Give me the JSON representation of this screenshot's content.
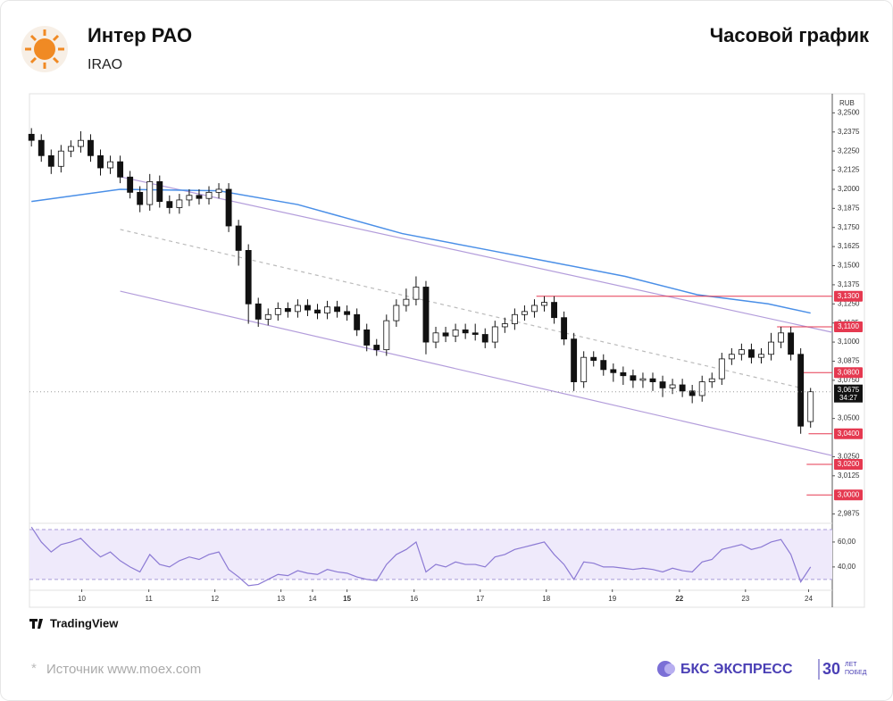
{
  "header": {
    "title": "Интер РАО",
    "ticker": "IRAO",
    "chart_kind": "Часовой график"
  },
  "chart_data": {
    "type": "candlestick",
    "currency": "RUB",
    "xlim": [
      -0.2,
      81.2
    ],
    "ylim": [
      2.982,
      3.2625
    ],
    "xticks": [
      {
        "value": 5.1,
        "label": "10"
      },
      {
        "value": 11.9,
        "label": "11"
      },
      {
        "value": 18.6,
        "label": "12"
      },
      {
        "value": 25.3,
        "label": "13"
      },
      {
        "value": 28.5,
        "label": "14"
      },
      {
        "value": 32,
        "label": "15"
      },
      {
        "value": 38.8,
        "label": "16"
      },
      {
        "value": 45.5,
        "label": "17"
      },
      {
        "value": 52.2,
        "label": "18"
      },
      {
        "value": 58.9,
        "label": "19"
      },
      {
        "value": 65.7,
        "label": "22"
      },
      {
        "value": 72.4,
        "label": "23"
      },
      {
        "value": 78.8,
        "label": "24"
      }
    ],
    "bold_xticks": [
      "15",
      "22"
    ],
    "yticks": [
      {
        "value": 2.9875,
        "label": "2,9875"
      },
      {
        "value": 3.0125,
        "label": "3,0125"
      },
      {
        "value": 3.025,
        "label": "3,0250"
      },
      {
        "value": 3.05,
        "label": "3,0500"
      },
      {
        "value": 3.075,
        "label": "3,0750"
      },
      {
        "value": 3.0875,
        "label": "3,0875"
      },
      {
        "value": 3.1,
        "label": "3,1000"
      },
      {
        "value": 3.1125,
        "label": "3,1125"
      },
      {
        "value": 3.125,
        "label": "3,1250"
      },
      {
        "value": 3.1375,
        "label": "3,1375"
      },
      {
        "value": 3.15,
        "label": "3,1500"
      },
      {
        "value": 3.1625,
        "label": "3,1625"
      },
      {
        "value": 3.175,
        "label": "3,1750"
      },
      {
        "value": 3.1875,
        "label": "3,1875"
      },
      {
        "value": 3.2,
        "label": "3,2000"
      },
      {
        "value": 3.2125,
        "label": "3,2125"
      },
      {
        "value": 3.225,
        "label": "3,2250"
      },
      {
        "value": 3.2375,
        "label": "3,2375"
      },
      {
        "value": 3.25,
        "label": "3,2500"
      }
    ],
    "open": [
      3.236,
      3.232,
      3.222,
      3.215,
      3.225,
      3.228,
      3.232,
      3.222,
      3.214,
      3.218,
      3.208,
      3.198,
      3.19,
      3.205,
      3.192,
      3.188,
      3.193,
      3.196,
      3.194,
      3.198,
      3.2,
      3.176,
      3.16,
      3.125,
      3.115,
      3.118,
      3.122,
      3.12,
      3.124,
      3.121,
      3.119,
      3.123,
      3.12,
      3.118,
      3.108,
      3.098,
      3.095,
      3.114,
      3.124,
      3.128,
      3.136,
      3.1,
      3.106,
      3.104,
      3.108,
      3.106,
      3.105,
      3.1,
      3.11,
      3.112,
      3.118,
      3.12,
      3.124,
      3.126,
      3.116,
      3.102,
      3.074,
      3.09,
      3.088,
      3.082,
      3.08,
      3.078,
      3.075,
      3.076,
      3.074,
      3.07,
      3.072,
      3.068,
      3.065,
      3.074,
      3.076,
      3.089,
      3.092,
      3.095,
      3.09,
      3.092,
      3.1,
      3.106,
      3.092,
      3.048
    ],
    "high": [
      3.24,
      3.236,
      3.226,
      3.229,
      3.232,
      3.238,
      3.236,
      3.226,
      3.222,
      3.222,
      3.212,
      3.202,
      3.21,
      3.209,
      3.196,
      3.197,
      3.2,
      3.2,
      3.202,
      3.204,
      3.204,
      3.18,
      3.164,
      3.129,
      3.122,
      3.126,
      3.126,
      3.128,
      3.128,
      3.125,
      3.127,
      3.127,
      3.124,
      3.122,
      3.112,
      3.102,
      3.118,
      3.128,
      3.135,
      3.143,
      3.14,
      3.11,
      3.11,
      3.112,
      3.112,
      3.112,
      3.109,
      3.114,
      3.116,
      3.122,
      3.124,
      3.128,
      3.13,
      3.13,
      3.12,
      3.106,
      3.094,
      3.094,
      3.092,
      3.086,
      3.084,
      3.082,
      3.08,
      3.08,
      3.078,
      3.076,
      3.076,
      3.072,
      3.078,
      3.08,
      3.093,
      3.096,
      3.099,
      3.099,
      3.096,
      3.106,
      3.11,
      3.11,
      3.096,
      3.07
    ],
    "low": [
      3.228,
      3.218,
      3.21,
      3.211,
      3.221,
      3.224,
      3.218,
      3.209,
      3.21,
      3.204,
      3.194,
      3.185,
      3.186,
      3.188,
      3.184,
      3.184,
      3.189,
      3.19,
      3.19,
      3.194,
      3.172,
      3.15,
      3.112,
      3.11,
      3.111,
      3.114,
      3.116,
      3.116,
      3.117,
      3.115,
      3.115,
      3.116,
      3.114,
      3.104,
      3.094,
      3.091,
      3.091,
      3.11,
      3.12,
      3.124,
      3.092,
      3.096,
      3.1,
      3.1,
      3.102,
      3.101,
      3.096,
      3.096,
      3.106,
      3.108,
      3.114,
      3.116,
      3.12,
      3.112,
      3.098,
      3.068,
      3.07,
      3.084,
      3.078,
      3.074,
      3.072,
      3.07,
      3.07,
      3.068,
      3.064,
      3.066,
      3.064,
      3.06,
      3.061,
      3.07,
      3.072,
      3.085,
      3.088,
      3.086,
      3.086,
      3.088,
      3.096,
      3.088,
      3.04,
      3.044
    ],
    "close": [
      3.232,
      3.222,
      3.215,
      3.225,
      3.228,
      3.232,
      3.222,
      3.214,
      3.218,
      3.208,
      3.198,
      3.19,
      3.205,
      3.192,
      3.188,
      3.193,
      3.196,
      3.194,
      3.198,
      3.2,
      3.176,
      3.16,
      3.125,
      3.115,
      3.118,
      3.122,
      3.12,
      3.124,
      3.121,
      3.119,
      3.123,
      3.12,
      3.118,
      3.108,
      3.098,
      3.095,
      3.114,
      3.124,
      3.128,
      3.136,
      3.1,
      3.106,
      3.104,
      3.108,
      3.106,
      3.105,
      3.1,
      3.11,
      3.112,
      3.118,
      3.12,
      3.124,
      3.126,
      3.116,
      3.102,
      3.074,
      3.09,
      3.088,
      3.082,
      3.08,
      3.078,
      3.075,
      3.076,
      3.074,
      3.07,
      3.072,
      3.068,
      3.065,
      3.074,
      3.076,
      3.089,
      3.092,
      3.095,
      3.09,
      3.092,
      3.1,
      3.106,
      3.092,
      3.045,
      3.0675
    ],
    "moving_average": {
      "color": "#4a8fe7",
      "x": [
        0,
        9,
        19,
        27,
        37.6,
        45.7,
        53,
        60.2,
        67.5,
        74.7,
        79
      ],
      "values": [
        3.192,
        3.2,
        3.199,
        3.19,
        3.171,
        3.161,
        3.152,
        3.143,
        3.131,
        3.125,
        3.119
      ]
    },
    "channel": {
      "color": "#b39ddb",
      "lines": [
        {
          "x": [
            9,
            81.2
          ],
          "values": [
            3.2082,
            3.1064
          ],
          "dashed": false
        },
        {
          "x": [
            9,
            78.3
          ],
          "values": [
            3.1737,
            3.0696
          ],
          "dashed": true
        },
        {
          "x": [
            9,
            81.2
          ],
          "values": [
            3.1333,
            3.0257
          ],
          "dashed": false
        }
      ]
    },
    "price_levels": [
      {
        "value": 3.13,
        "label": "3,1300",
        "x": 51.2
      },
      {
        "value": 3.11,
        "label": "3,1100",
        "x": 75.6
      },
      {
        "value": 3.08,
        "label": "3,0800",
        "x": 78.1
      },
      {
        "value": 3.04,
        "label": "3,0400",
        "x": 78.8
      },
      {
        "value": 3.02,
        "label": "3,0200",
        "x": 78.6
      },
      {
        "value": 3,
        "label": "3,0000",
        "x": 78.6
      }
    ],
    "level_color": "#e53950",
    "current_price": {
      "value": 3.0675,
      "label": "3,0675",
      "timer": "34:27"
    },
    "rsi": {
      "color": "#8c7ad4",
      "ylim": [
        22,
        74.3
      ],
      "band": [
        30,
        70
      ],
      "yticks": [
        {
          "value": 40,
          "label": "40,00"
        },
        {
          "value": 60,
          "label": "60,00"
        }
      ],
      "values": [
        72,
        60,
        52,
        58,
        60,
        63,
        55,
        48,
        52,
        45,
        40,
        36,
        50,
        42,
        40,
        45,
        48,
        46,
        50,
        52,
        38,
        32,
        25,
        26,
        30,
        34,
        33,
        37,
        35,
        34,
        38,
        36,
        35,
        32,
        30,
        29,
        42,
        50,
        54,
        60,
        36,
        42,
        40,
        44,
        42,
        42,
        40,
        48,
        50,
        54,
        56,
        58,
        60,
        50,
        42,
        30,
        44,
        43,
        40,
        40,
        39,
        38,
        39,
        38,
        36,
        39,
        37,
        36,
        44,
        46,
        54,
        56,
        58,
        54,
        56,
        60,
        62,
        50,
        28,
        40
      ]
    }
  },
  "footer": {
    "platform": "TradingView",
    "source_mark": "*",
    "source": "Источник www.moex.com",
    "brand": "БКС ЭКСПРЕСС",
    "brand_number": "30",
    "brand_line1": "ЛЕТ",
    "brand_line2": "ПОБЕД"
  }
}
